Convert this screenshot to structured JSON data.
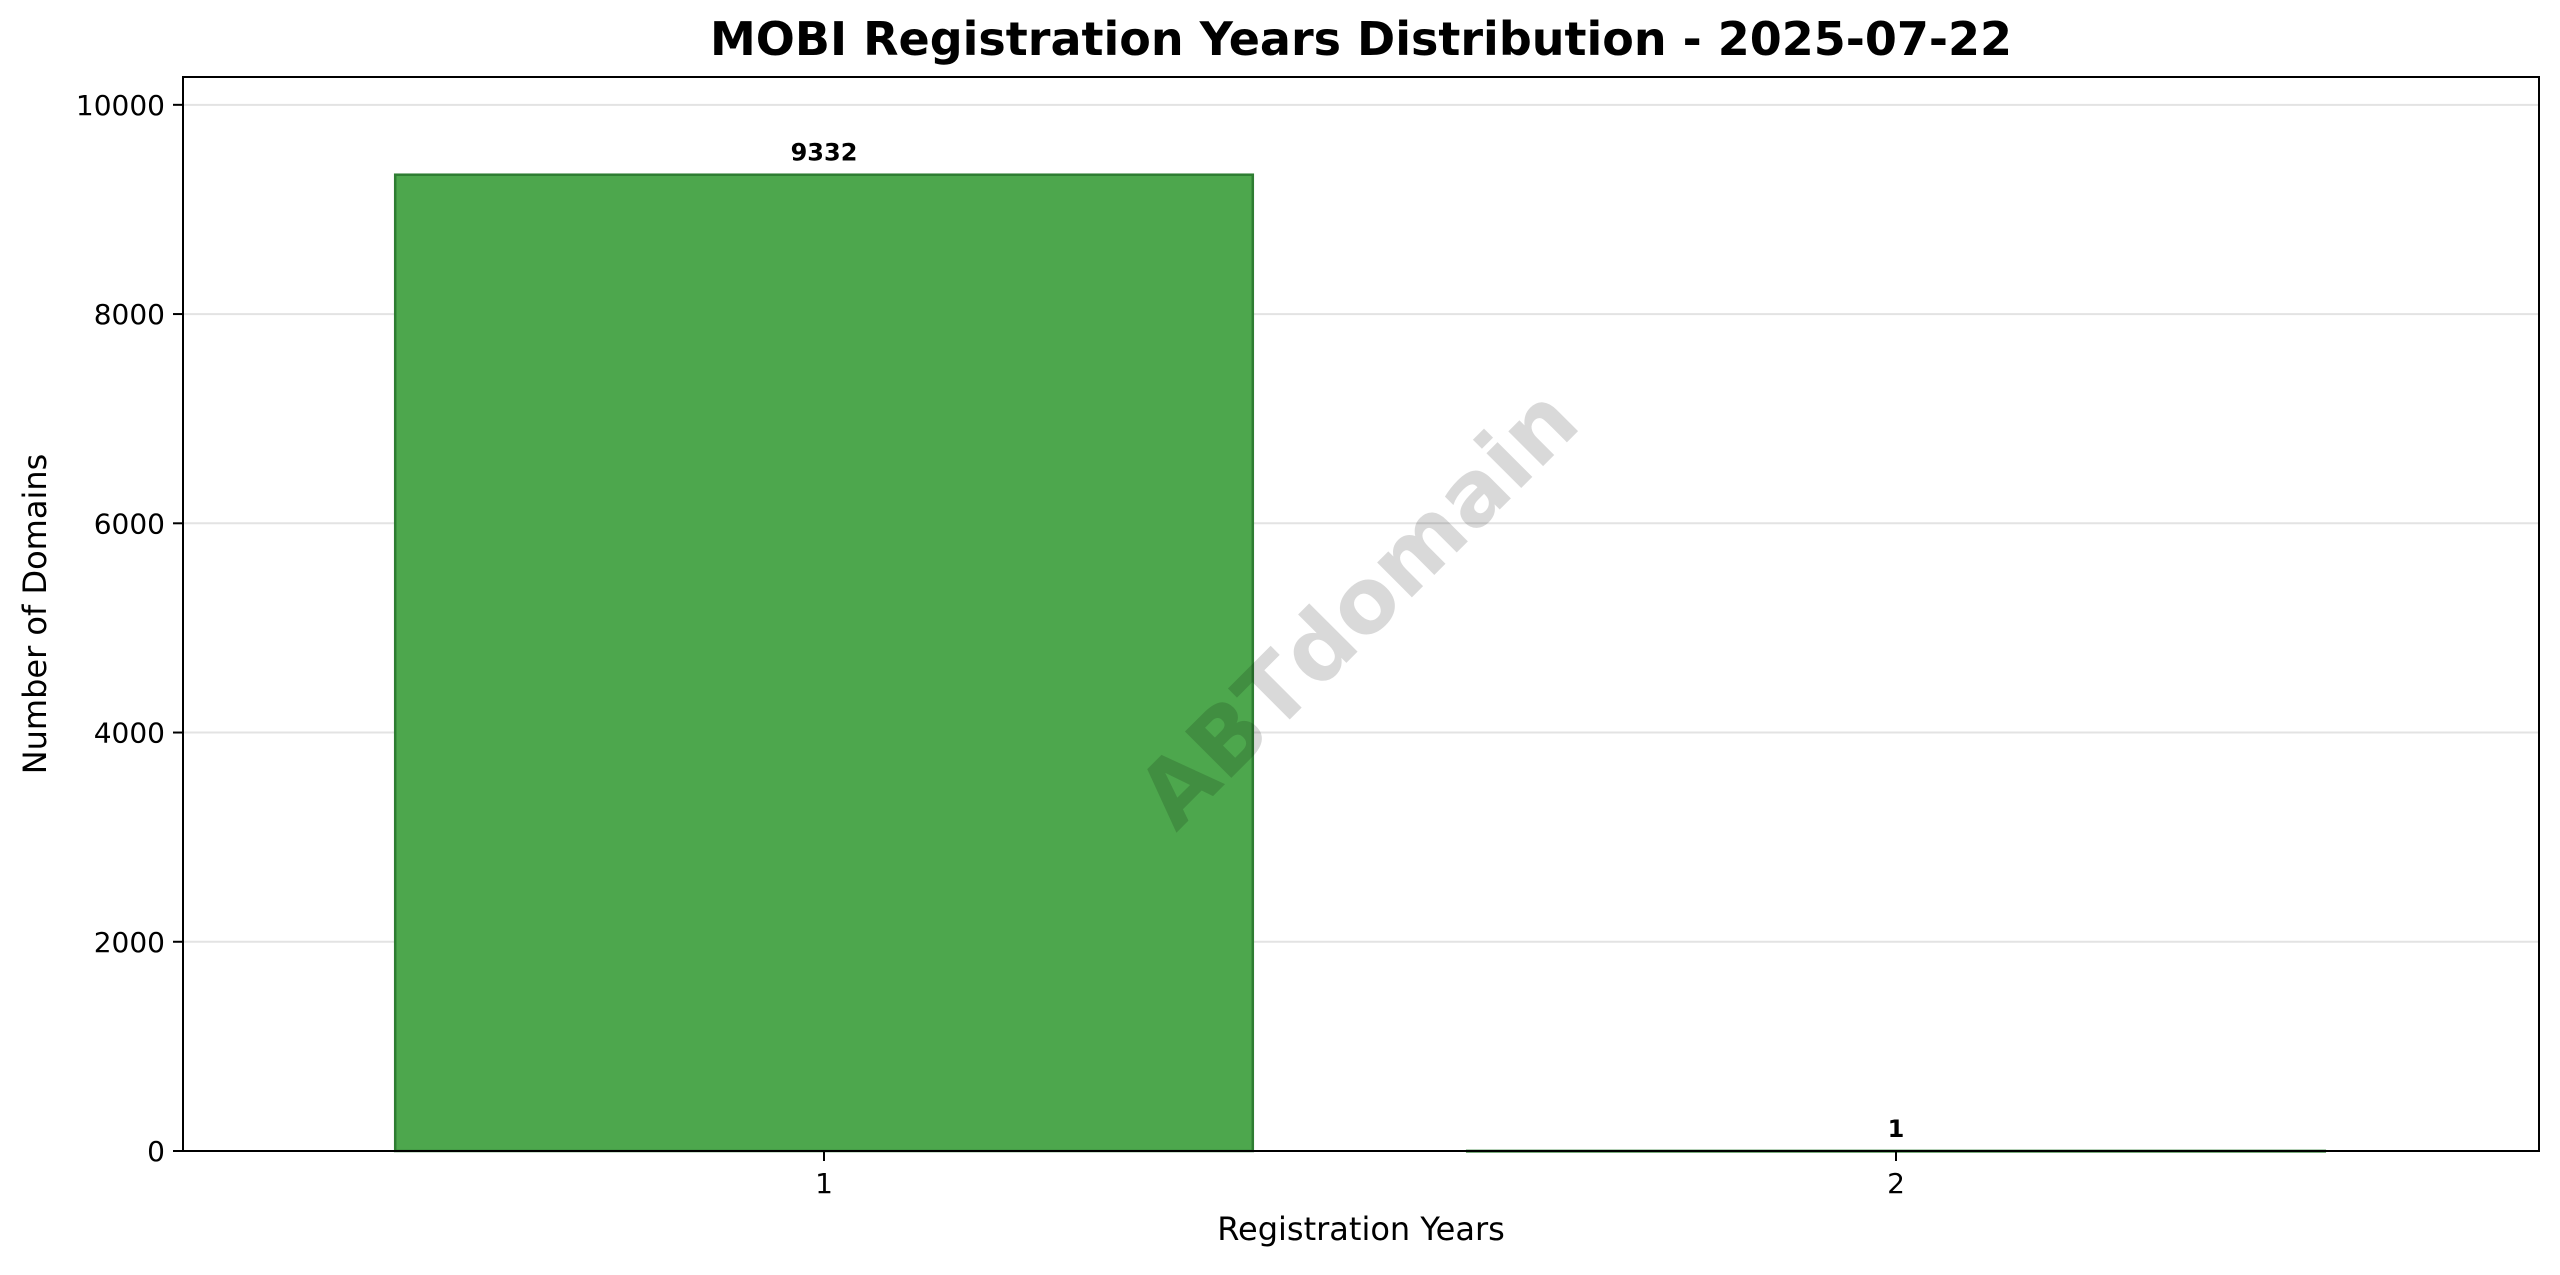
{
  "chart_data": {
    "type": "bar",
    "title": "MOBI Registration Years Distribution - 2025-07-22",
    "xlabel": "Registration Years",
    "ylabel": "Number of Domains",
    "categories": [
      "1",
      "2"
    ],
    "values": [
      9332,
      1
    ],
    "data_labels": [
      "9332",
      "1"
    ],
    "ylim": [
      0,
      10266
    ],
    "yticks": [
      0,
      2000,
      4000,
      6000,
      8000,
      10000
    ],
    "ytick_labels": [
      "0",
      "2000",
      "4000",
      "6000",
      "8000",
      "10000"
    ],
    "grid": "horizontal",
    "legend": "none",
    "bar_color": "#4da74d",
    "bar_edge_color": "#2e7d32",
    "watermark": "ABTdomain"
  }
}
